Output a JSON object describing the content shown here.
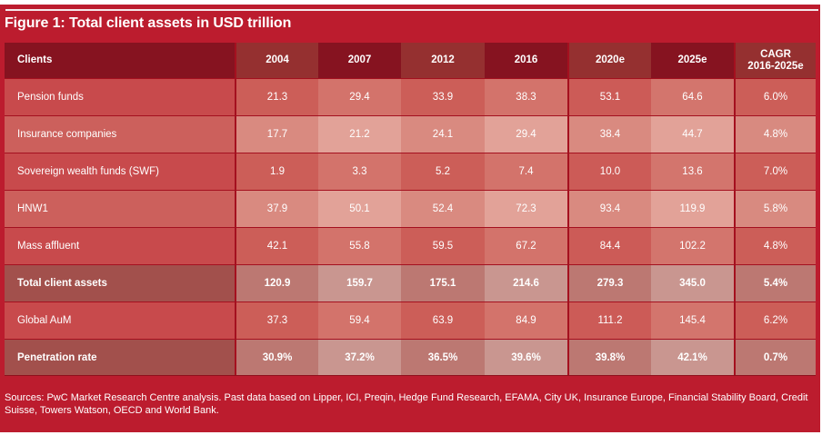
{
  "figure": {
    "title": "Figure 1: Total client assets in USD trillion",
    "sources": "Sources: PwC Market Research Centre analysis. Past data based on Lipper, ICI, Preqin, Hedge Fund Research, EFAMA, City UK, Insurance Europe, Financial Stability Board, Credit Suisse, Towers Watson, OECD and World Bank."
  },
  "colors": {
    "frame": "#bc1c2e",
    "header_dark": "#861320",
    "header_mid": "#953030",
    "row_strong": "#c84a4c",
    "row_light": "#d8807a",
    "row_total": "#a2504c",
    "text": "#ffffff"
  },
  "chart_data": {
    "type": "table",
    "title": "Figure 1: Total client assets in USD trillion",
    "columns": [
      "Clients",
      "2004",
      "2007",
      "2012",
      "2016",
      "2020e",
      "2025e",
      "CAGR 2016-2025e"
    ],
    "header_lines": {
      "CAGR 2016-2025e": [
        "CAGR",
        "2016-2025e"
      ]
    },
    "rows": [
      {
        "label": "Pension funds",
        "values": [
          "21.3",
          "29.4",
          "33.9",
          "38.3",
          "53.1",
          "64.6",
          "6.0%"
        ],
        "bold": false,
        "tone": "strong"
      },
      {
        "label": "Insurance companies",
        "values": [
          "17.7",
          "21.2",
          "24.1",
          "29.4",
          "38.4",
          "44.7",
          "4.8%"
        ],
        "bold": false,
        "tone": "light"
      },
      {
        "label": "Sovereign wealth funds (SWF)",
        "values": [
          "1.9",
          "3.3",
          "5.2",
          "7.4",
          "10.0",
          "13.6",
          "7.0%"
        ],
        "bold": false,
        "tone": "strong"
      },
      {
        "label": "HNW1",
        "values": [
          "37.9",
          "50.1",
          "52.4",
          "72.3",
          "93.4",
          "119.9",
          "5.8%"
        ],
        "bold": false,
        "tone": "light"
      },
      {
        "label": "Mass affluent",
        "values": [
          "42.1",
          "55.8",
          "59.5",
          "67.2",
          "84.4",
          "102.2",
          "4.8%"
        ],
        "bold": false,
        "tone": "strong"
      },
      {
        "label": "Total client assets",
        "values": [
          "120.9",
          "159.7",
          "175.1",
          "214.6",
          "279.3",
          "345.0",
          "5.4%"
        ],
        "bold": true,
        "tone": "total"
      },
      {
        "label": "Global AuM",
        "values": [
          "37.3",
          "59.4",
          "63.9",
          "84.9",
          "111.2",
          "145.4",
          "6.2%"
        ],
        "bold": false,
        "tone": "strong"
      },
      {
        "label": "Penetration rate",
        "values": [
          "30.9%",
          "37.2%",
          "36.5%",
          "39.6%",
          "39.8%",
          "42.1%",
          "0.7%"
        ],
        "bold": true,
        "tone": "total"
      }
    ],
    "units": "USD trillion"
  }
}
